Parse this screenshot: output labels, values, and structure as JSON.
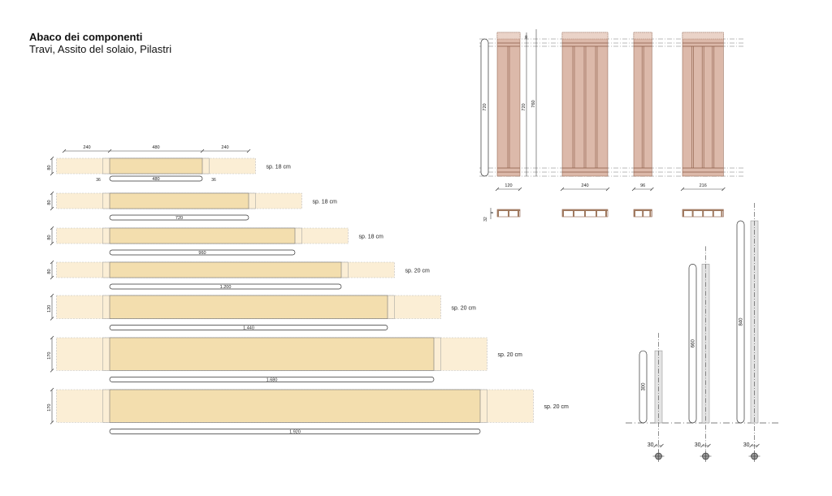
{
  "header": {
    "title": "Abaco dei componenti",
    "subtitle": "Travi, Assito del solaio, Pilastri"
  },
  "colors": {
    "beam_core": "#f3deae",
    "beam_extension": "#fbeed5",
    "panel": "#dcb9aa",
    "panel_line": "#8a5a45",
    "column": "#e4e4e4",
    "line": "#444444"
  },
  "beams": {
    "overhang_label": "240",
    "top_span_label": "480",
    "bearing_label": "36",
    "items": [
      {
        "length": 480,
        "length_label": "480",
        "height": 80,
        "height_label": "80",
        "thickness": "sp. 18 cm"
      },
      {
        "length": 720,
        "length_label": "720",
        "height": 80,
        "height_label": "80",
        "thickness": "sp. 18 cm"
      },
      {
        "length": 960,
        "length_label": "960",
        "height": 80,
        "height_label": "80",
        "thickness": "sp. 18 cm"
      },
      {
        "length": 1200,
        "length_label": "1.200",
        "height": 80,
        "height_label": "80",
        "thickness": "sp. 20 cm"
      },
      {
        "length": 1440,
        "length_label": "1.440",
        "height": 120,
        "height_label": "120",
        "thickness": "sp. 20 cm"
      },
      {
        "length": 1680,
        "length_label": "1.680",
        "height": 170,
        "height_label": "170",
        "thickness": "sp. 20 cm"
      },
      {
        "length": 1920,
        "length_label": "1.920",
        "height": 170,
        "height_label": "170",
        "thickness": "sp. 20 cm"
      }
    ]
  },
  "floor_panels": {
    "height_label": "720",
    "inner_height_label": "720",
    "total_height_label": "760",
    "top_offset_label": "40",
    "section_height_label": "32",
    "section_offset_label": "8",
    "items": [
      {
        "width": 120,
        "width_label": "120",
        "ribs": 2
      },
      {
        "width": 240,
        "width_label": "240",
        "ribs": 4
      },
      {
        "width": 96,
        "width_label": "96",
        "ribs": 2
      },
      {
        "width": 216,
        "width_label": "216",
        "ribs": 4
      }
    ]
  },
  "columns": {
    "items": [
      {
        "height": 300,
        "height_label": "300",
        "diameter_label": "30"
      },
      {
        "height": 660,
        "height_label": "660",
        "diameter_label": "30"
      },
      {
        "height": 840,
        "height_label": "840",
        "diameter_label": "30"
      }
    ]
  }
}
